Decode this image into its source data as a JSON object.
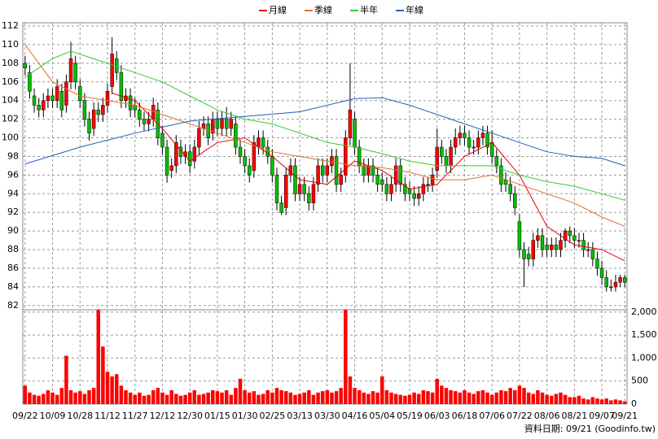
{
  "chart_data": {
    "type": "candlestick",
    "xlim": [
      -0.5,
      131.5
    ],
    "xticks": [
      {
        "value": 0,
        "label": "09/22"
      },
      {
        "value": 6,
        "label": "10/09"
      },
      {
        "value": 12,
        "label": "10/28"
      },
      {
        "value": 18,
        "label": "11/12"
      },
      {
        "value": 24,
        "label": "11/27"
      },
      {
        "value": 30,
        "label": "12/12"
      },
      {
        "value": 36,
        "label": "12/30"
      },
      {
        "value": 42,
        "label": "01/15"
      },
      {
        "value": 48,
        "label": "01/30"
      },
      {
        "value": 54,
        "label": "02/25"
      },
      {
        "value": 60,
        "label": "03/13"
      },
      {
        "value": 66,
        "label": "03/30"
      },
      {
        "value": 72,
        "label": "04/16"
      },
      {
        "value": 78,
        "label": "05/04"
      },
      {
        "value": 84,
        "label": "05/19"
      },
      {
        "value": 90,
        "label": "06/03"
      },
      {
        "value": 96,
        "label": "06/18"
      },
      {
        "value": 102,
        "label": "07/06"
      },
      {
        "value": 108,
        "label": "07/22"
      },
      {
        "value": 114,
        "label": "08/06"
      },
      {
        "value": 120,
        "label": "08/21"
      },
      {
        "value": 126,
        "label": "09/07"
      },
      {
        "value": 131,
        "label": "09/21"
      }
    ],
    "ylim": [
      81.55,
      112.35
    ],
    "yticks": [
      82,
      84,
      86,
      88,
      90,
      92,
      94,
      96,
      98,
      100,
      102,
      104,
      106,
      108,
      110,
      112
    ],
    "grid": true,
    "up_color": "#ff0000",
    "down_color": "#00c000",
    "open": [
      108,
      107,
      104.5,
      103.5,
      103,
      104,
      104.5,
      104,
      105,
      103.5,
      106,
      108,
      105.5,
      104,
      102,
      101,
      103,
      102.5,
      103.5,
      105.5,
      108.5,
      107,
      104,
      104.5,
      103.5,
      103,
      102,
      101.5,
      102,
      103,
      100.5,
      99,
      96.5,
      97,
      99,
      98,
      98.5,
      97.5,
      99,
      101,
      101.5,
      100.5,
      102,
      101,
      102,
      101,
      101.5,
      99,
      98,
      97,
      96.5,
      99,
      100,
      99,
      98,
      96,
      93,
      92.5,
      96,
      97,
      94,
      95,
      94,
      93,
      95,
      97,
      96,
      97,
      98,
      95,
      96,
      100,
      102,
      99,
      97,
      96,
      97,
      96,
      95.5,
      95,
      94,
      95,
      97,
      95,
      94.5,
      94,
      93.5,
      94,
      95,
      95,
      96.5,
      99,
      98,
      97,
      99,
      100,
      100.5,
      100,
      99,
      99,
      100,
      100.5,
      99.5,
      98,
      97,
      95.5,
      95,
      94,
      91,
      88,
      87.5,
      87,
      89,
      89.5,
      88.5,
      88,
      88.5,
      88,
      89,
      90,
      89.5,
      89,
      89,
      88,
      88,
      87,
      86,
      85,
      84,
      84,
      84.5,
      85
    ],
    "high": [
      108.8,
      107.8,
      105.3,
      104.3,
      104.8,
      105.3,
      105.3,
      106.3,
      105.8,
      106.8,
      110.3,
      108.8,
      106.3,
      104.8,
      102.8,
      103.8,
      103.8,
      104.3,
      105.8,
      110.8,
      109.3,
      107.8,
      105.3,
      105.3,
      104.3,
      103.8,
      102.8,
      102.8,
      104.3,
      103.8,
      101.3,
      99.8,
      97.8,
      100.3,
      99.8,
      99.3,
      99.3,
      99.8,
      101.8,
      102.3,
      102.3,
      102.8,
      102.8,
      102.8,
      103.3,
      102.8,
      102.3,
      99.8,
      98.8,
      97.8,
      100.3,
      100.8,
      100.8,
      99.8,
      98.8,
      96.8,
      93.8,
      96.8,
      97.8,
      97.8,
      95.8,
      95.8,
      94.8,
      95.8,
      97.8,
      97.8,
      97.8,
      98.8,
      98.8,
      96.8,
      100.8,
      108,
      102.8,
      99.8,
      97.8,
      97.8,
      97.8,
      96.8,
      96.3,
      95.8,
      95.8,
      97.8,
      97.8,
      95.8,
      95.3,
      94.8,
      94.8,
      95.8,
      95.8,
      96.8,
      101,
      99.8,
      98.8,
      99.8,
      101,
      101.3,
      101.3,
      100.8,
      99.8,
      100.8,
      101.3,
      101.3,
      100.8,
      98.8,
      97.8,
      96.3,
      95.8,
      94.8,
      91.8,
      88.8,
      88.3,
      89.8,
      90.3,
      90.3,
      89.3,
      89.3,
      89.3,
      89.8,
      90.3,
      90.5,
      90.3,
      89.8,
      89.8,
      88.8,
      88.8,
      87.8,
      86.8,
      85.8,
      84.8,
      85.3,
      85.3,
      85.3
    ],
    "low": [
      106.7,
      104.2,
      102.7,
      102.2,
      102.2,
      103.2,
      103.2,
      103.2,
      102.2,
      102.7,
      105.2,
      105.2,
      103.2,
      101.2,
      99.7,
      100.2,
      101.7,
      101.7,
      102.7,
      104.7,
      106.2,
      103.2,
      103.2,
      102.2,
      102.2,
      101.2,
      100.7,
      100.7,
      101.2,
      99.2,
      98.2,
      95.2,
      95.7,
      96.2,
      97.2,
      97.2,
      96.2,
      96.7,
      98.2,
      100.2,
      99.2,
      99.7,
      100.2,
      100.2,
      100.2,
      100.2,
      98.2,
      97.2,
      96.2,
      95.2,
      95.7,
      98.2,
      98.2,
      97.2,
      95.2,
      92.2,
      91.7,
      91.7,
      95.2,
      93.2,
      93.2,
      93.2,
      92.2,
      92.2,
      94.2,
      95.2,
      95.2,
      96.2,
      94.2,
      94.2,
      95.2,
      99.2,
      98.2,
      96.2,
      95.2,
      95.2,
      95.2,
      94.2,
      94.2,
      93.2,
      93.2,
      94.2,
      94.2,
      93.2,
      93.2,
      92.7,
      92.7,
      93.2,
      94.2,
      94.2,
      95.7,
      97.2,
      96.2,
      96.2,
      98.2,
      99.2,
      99.2,
      98.2,
      98.2,
      98.2,
      99.2,
      98.2,
      97.2,
      96.2,
      94.2,
      94.2,
      93.2,
      91.7,
      87.2,
      84,
      86.2,
      86.2,
      88.2,
      87.2,
      87.2,
      87.2,
      87.2,
      87.2,
      88.2,
      88.7,
      88.2,
      88.2,
      87.2,
      87.2,
      86.2,
      85.2,
      84.2,
      83.5,
      83.5,
      83.5,
      84,
      84
    ],
    "close": [
      107.5,
      105,
      103.5,
      103,
      104,
      104.5,
      104,
      105.5,
      103,
      106,
      108.5,
      106,
      104,
      102,
      100.5,
      103,
      102.5,
      103.5,
      105,
      109,
      107,
      104,
      104.5,
      103,
      103,
      102,
      101.5,
      102,
      103.5,
      100,
      99,
      96,
      97,
      99.5,
      98,
      98.5,
      97,
      99,
      101,
      101.5,
      100,
      102,
      101,
      102,
      101,
      102,
      99,
      98,
      97,
      96,
      99.5,
      100,
      99,
      98,
      96,
      93,
      92,
      96,
      97,
      94,
      95,
      94,
      93,
      95,
      97,
      96,
      97,
      98,
      95,
      96,
      100,
      103,
      99,
      97,
      96,
      97,
      96,
      95,
      95,
      94,
      95,
      97,
      95,
      94,
      94,
      93.5,
      94,
      95,
      95,
      96,
      99,
      98,
      97,
      99,
      100,
      100.5,
      100,
      99,
      99,
      100,
      100.5,
      99,
      98,
      97,
      95,
      95,
      94,
      92.5,
      88,
      87,
      87,
      89,
      89.5,
      88,
      88,
      88.5,
      88,
      89,
      90,
      89.5,
      89,
      89,
      88,
      88,
      87,
      86,
      85,
      84,
      84,
      84.5,
      85,
      84.5
    ],
    "lines": [
      {
        "name": "月線",
        "color": "#e00000",
        "x": [
          19,
          24,
          30,
          36,
          42,
          48,
          54,
          60,
          66,
          72,
          78,
          84,
          90,
          96,
          102,
          108,
          114,
          120,
          126,
          131
        ],
        "values": [
          104.8,
          104,
          101,
          97.5,
          99.5,
          100,
          98,
          95.5,
          95,
          97.5,
          96.5,
          94.5,
          95,
          98,
          99.5,
          96,
          90.5,
          88.5,
          88,
          86.8
        ]
      },
      {
        "name": "季線",
        "color": "#e07030",
        "x": [
          0,
          6,
          12,
          18,
          24,
          30,
          36,
          42,
          48,
          54,
          60,
          66,
          72,
          78,
          84,
          90,
          96,
          102,
          108,
          114,
          120,
          126,
          131
        ],
        "values": [
          110,
          106,
          104.5,
          104,
          103.5,
          102.5,
          101.5,
          100.5,
          99.5,
          98.5,
          98,
          97.5,
          97,
          96.8,
          96.3,
          95.5,
          95.5,
          96,
          95,
          94,
          93,
          91.5,
          90.5
        ]
      },
      {
        "name": "半年",
        "color": "#33cc33",
        "x": [
          0,
          6,
          10,
          18,
          24,
          30,
          36,
          42,
          48,
          54,
          60,
          66,
          72,
          78,
          84,
          90,
          96,
          102,
          108,
          114,
          120,
          126,
          131
        ],
        "values": [
          106.5,
          108.5,
          109.3,
          108,
          107,
          106,
          104.5,
          103,
          102,
          101.5,
          100.5,
          99.5,
          99,
          98.3,
          97.5,
          97,
          97,
          97,
          96,
          95.3,
          94.8,
          94,
          93.3
        ]
      },
      {
        "name": "年線",
        "color": "#2060c0",
        "x": [
          0,
          12,
          24,
          36,
          48,
          60,
          72,
          78,
          84,
          90,
          96,
          102,
          108,
          114,
          120,
          126,
          131
        ],
        "values": [
          97.2,
          99,
          100.5,
          101.8,
          102.3,
          102.8,
          104.2,
          104.3,
          103.5,
          102.5,
          101.5,
          100.5,
          99.5,
          98.5,
          98,
          97.8,
          97
        ]
      }
    ],
    "volume": {
      "color": "#ff0000",
      "y2lim": [
        0,
        2050
      ],
      "y2ticks": [
        0,
        500,
        {
          "value": 1000,
          "label": "1,000"
        },
        {
          "value": 1500,
          "label": "1,500"
        },
        {
          "value": 2000,
          "label": "2,000"
        }
      ],
      "values": [
        400,
        250,
        200,
        180,
        220,
        300,
        250,
        200,
        350,
        1050,
        300,
        250,
        280,
        220,
        300,
        350,
        2050,
        1250,
        700,
        600,
        650,
        400,
        300,
        250,
        200,
        250,
        180,
        200,
        300,
        350,
        250,
        200,
        300,
        220,
        180,
        200,
        250,
        300,
        200,
        220,
        250,
        300,
        280,
        250,
        300,
        200,
        350,
        550,
        300,
        250,
        280,
        200,
        220,
        300,
        250,
        350,
        300,
        280,
        250,
        200,
        220,
        250,
        300,
        200,
        250,
        280,
        300,
        250,
        280,
        350,
        2050,
        600,
        350,
        300,
        250,
        220,
        280,
        250,
        600,
        300,
        250,
        220,
        200,
        180,
        200,
        250,
        220,
        300,
        280,
        250,
        550,
        400,
        350,
        300,
        280,
        250,
        300,
        250,
        220,
        280,
        300,
        250,
        200,
        250,
        300,
        280,
        350,
        300,
        400,
        350,
        250,
        220,
        300,
        250,
        200,
        180,
        220,
        250,
        200,
        150,
        150,
        180,
        120,
        100,
        150,
        120,
        100,
        120,
        80,
        100,
        80,
        60
      ]
    },
    "footer": "資料日期: 09/21  (Goodinfo.tw)"
  }
}
